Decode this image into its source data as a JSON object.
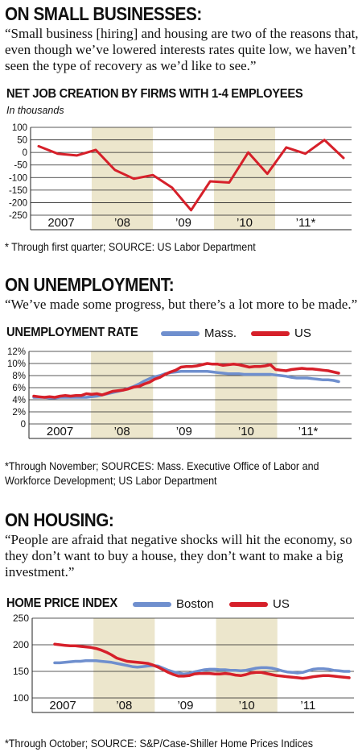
{
  "sections": [
    {
      "heading": "ON SMALL BUSINESSES:",
      "quote": "“Small business [hiring] and housing are two of the reasons that, even though we’ve lowered interests rates quite low, we haven’t seen the type of recovery as we’d like to see.”"
    },
    {
      "heading": "ON UNEMPLOYMENT:",
      "quote": "“We’ve made some progress, but there’s a lot more to be made.”"
    },
    {
      "heading": "ON HOUSING:",
      "quote": "“People are afraid that negative shocks will hit the economy, so they don’t want to buy a house, they don’t want to make a big investment.”"
    }
  ],
  "colors": {
    "red": "#d6202a",
    "blue": "#6f8fce",
    "shade": "#ece6cc"
  },
  "chart_data": [
    {
      "type": "line",
      "title": "NET JOB CREATION BY FIRMS WITH 1-4 EMPLOYEES",
      "subtitle": "In thousands",
      "ylim": [
        -250,
        100
      ],
      "yticks": [
        "100",
        "50",
        "0",
        "-50",
        "-100",
        "-150",
        "-200",
        "-250"
      ],
      "year_labels": [
        "2007",
        "’08",
        "’09",
        "’10",
        "’11*"
      ],
      "shaded_years": [
        "’08",
        "’10"
      ],
      "series": [
        {
          "color": "red",
          "x": [
            "2007Q1",
            "2007Q2",
            "2007Q3",
            "2007Q4",
            "2008Q1",
            "2008Q2",
            "2008Q3",
            "2008Q4",
            "2009Q1",
            "2009Q2",
            "2009Q3",
            "2009Q4",
            "2010Q1",
            "2010Q2",
            "2010Q3",
            "2010Q4",
            "2011Q1"
          ],
          "values": [
            25,
            -5,
            -12,
            10,
            -70,
            -105,
            -90,
            -140,
            -230,
            -115,
            -120,
            0,
            -85,
            20,
            -5,
            50,
            -22
          ]
        }
      ],
      "note": "* Through first quarter; SOURCE: US Labor Department"
    },
    {
      "type": "line",
      "title": "UNEMPLOYMENT RATE",
      "ylim": [
        0,
        12
      ],
      "yticks": [
        "12%",
        "10%",
        "8%",
        "6%",
        "4%",
        "2%",
        "0"
      ],
      "year_labels": [
        "2007",
        "’08",
        "’09",
        "’10",
        "’11*"
      ],
      "shaded_years": [
        "’08",
        "’10"
      ],
      "series": [
        {
          "name": "Mass.",
          "color": "blue",
          "values": [
            4.4,
            4.4,
            4.4,
            4.3,
            4.3,
            4.4,
            4.4,
            4.4,
            4.4,
            4.4,
            4.4,
            4.5,
            4.6,
            4.8,
            5.0,
            5.2,
            5.4,
            5.6,
            5.9,
            6.2,
            6.6,
            7.1,
            7.5,
            7.8,
            8.0,
            8.3,
            8.5,
            8.6,
            8.7,
            8.7,
            8.7,
            8.7,
            8.7,
            8.7,
            8.6,
            8.5,
            8.4,
            8.3,
            8.3,
            8.3,
            8.2,
            8.2,
            8.2,
            8.2,
            8.2,
            8.2,
            8.1,
            8.0,
            7.9,
            7.7,
            7.6,
            7.6,
            7.6,
            7.5,
            7.4,
            7.3,
            7.3,
            7.2,
            7.0
          ]
        },
        {
          "name": "US",
          "color": "red",
          "values": [
            4.6,
            4.5,
            4.4,
            4.5,
            4.4,
            4.6,
            4.7,
            4.6,
            4.7,
            4.7,
            5.0,
            4.9,
            5.0,
            4.8,
            5.1,
            5.4,
            5.5,
            5.6,
            5.8,
            6.1,
            6.2,
            6.6,
            6.9,
            7.4,
            7.7,
            8.2,
            8.6,
            8.9,
            9.4,
            9.5,
            9.5,
            9.6,
            9.8,
            10.0,
            9.9,
            9.9,
            9.7,
            9.8,
            9.9,
            9.8,
            9.6,
            9.4,
            9.5,
            9.5,
            9.6,
            9.8,
            9.0,
            8.9,
            8.8,
            9.0,
            9.1,
            9.2,
            9.1,
            9.1,
            9.0,
            8.9,
            8.8,
            8.6,
            8.4
          ]
        }
      ],
      "note": "*Through November; SOURCES: Mass. Executive Office of Labor and Workforce Development; US Labor Department"
    },
    {
      "type": "line",
      "title": "HOME PRICE INDEX",
      "ylim": [
        100,
        250
      ],
      "yticks": [
        "250",
        "200",
        "150",
        "100"
      ],
      "year_labels": [
        "2007",
        "’08",
        "’09",
        "’10",
        "’11"
      ],
      "shaded_years": [
        "’08",
        "’10"
      ],
      "series": [
        {
          "name": "Boston",
          "color": "blue",
          "values": [
            166,
            166,
            167,
            168,
            169,
            169,
            170,
            170,
            170,
            169,
            168,
            167,
            165,
            163,
            161,
            159,
            158,
            159,
            160,
            161,
            160,
            156,
            152,
            149,
            147,
            145,
            146,
            149,
            151,
            153,
            154,
            154,
            153,
            153,
            152,
            152,
            151,
            152,
            154,
            156,
            157,
            157,
            156,
            154,
            151,
            149,
            148,
            147,
            148,
            151,
            154,
            155,
            155,
            154,
            152,
            151,
            150,
            150
          ]
        },
        {
          "name": "US",
          "color": "red",
          "values": [
            201,
            200,
            199,
            198,
            198,
            197,
            196,
            195,
            193,
            190,
            186,
            181,
            175,
            172,
            169,
            168,
            167,
            166,
            165,
            162,
            158,
            153,
            148,
            144,
            141,
            141,
            142,
            145,
            146,
            146,
            146,
            145,
            145,
            146,
            145,
            143,
            142,
            144,
            147,
            148,
            148,
            146,
            144,
            142,
            141,
            140,
            139,
            138,
            137,
            138,
            140,
            141,
            142,
            142,
            141,
            140,
            139,
            138
          ]
        }
      ],
      "note": "*Through October; SOURCE: S&P/Case-Shiller Home Prices Indices"
    }
  ]
}
